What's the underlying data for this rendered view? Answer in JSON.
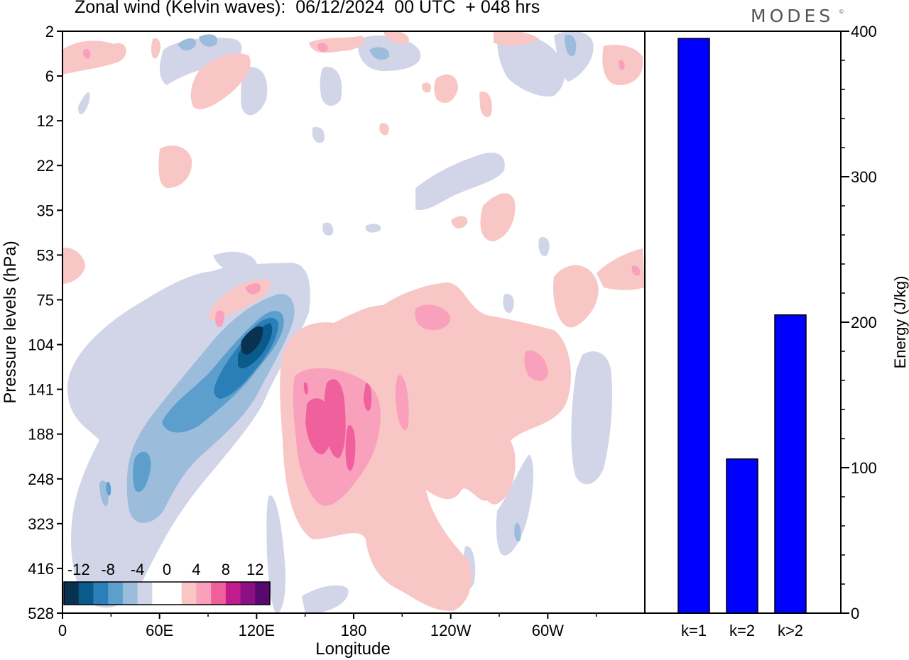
{
  "title": "Zonal wind (Kelvin waves):  06/12/2024  00 UTC  + 048 hrs",
  "brand": "MODES",
  "brand_mark": "©",
  "chart_data": [
    {
      "type": "heatmap",
      "field": "Zonal wind Kelvin-wave component",
      "xlabel": "Longitude",
      "ylabel": "Pressure levels (hPa)",
      "x_ticks": [
        "0",
        "60E",
        "120E",
        "180",
        "120W",
        "60W"
      ],
      "y_levels": [
        "2",
        "6",
        "12",
        "22",
        "35",
        "53",
        "75",
        "104",
        "141",
        "188",
        "248",
        "323",
        "416",
        "528"
      ],
      "y_axis_inverted": true,
      "colorbar": {
        "labels": [
          "-12",
          "-8",
          "-4",
          "0",
          "4",
          "8",
          "12"
        ],
        "colors": [
          "#08324f",
          "#0a5a8c",
          "#2b7fb8",
          "#5c9fcd",
          "#9cbcdc",
          "#d2d4e8",
          "#ffffff",
          "#ffffff",
          "#f8c6c4",
          "#f8a0bc",
          "#f0609c",
          "#c21c8c",
          "#8a1084",
          "#560a6e"
        ]
      },
      "features": [
        {
          "sign": "negative",
          "description": "tilted band 40E-125E",
          "min_value": -12,
          "lon_range": [
            40,
            125
          ],
          "p_range_hPa": [
            75,
            300
          ]
        },
        {
          "sign": "positive",
          "description": "maximum near 150E-170E",
          "max_value": 10,
          "lon_range": [
            140,
            190
          ],
          "p_range_hPa": [
            104,
            300
          ]
        },
        {
          "sign": "positive",
          "description": "weak positive 190-120W",
          "max_value": 4,
          "lon_range": [
            175,
            240
          ],
          "p_range_hPa": [
            75,
            500
          ]
        }
      ],
      "grid": false
    },
    {
      "type": "bar",
      "categories": [
        "k=1",
        "k=2",
        "k>2"
      ],
      "values": [
        395,
        106,
        205
      ],
      "ylabel": "Energy (J/kg)",
      "ylim": [
        0,
        400
      ],
      "y_ticks": [
        0,
        100,
        200,
        300,
        400
      ],
      "bar_color": "#0000ff",
      "grid": false
    }
  ]
}
